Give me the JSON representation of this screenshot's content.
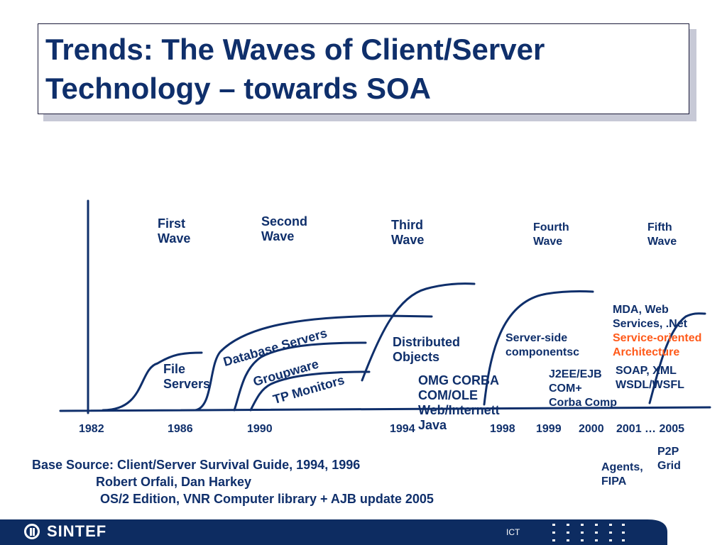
{
  "title": {
    "line1": "Trends: The Waves of Client/Server",
    "line2": "Technology – towards SOA"
  },
  "waves": {
    "first": [
      "First",
      "Wave"
    ],
    "second": [
      "Second",
      "Wave"
    ],
    "third": [
      "Third",
      "Wave"
    ],
    "fourth": [
      "Fourth",
      "Wave"
    ],
    "fifth": [
      "Fifth",
      "Wave"
    ]
  },
  "technologies": {
    "file_servers": [
      "File",
      "Servers"
    ],
    "database_servers": "Database Servers",
    "groupware": "Groupware",
    "tp_monitors": "TP Monitors",
    "distributed_objects": [
      "Distributed",
      "Objects"
    ],
    "third_wave_items": [
      "OMG CORBA",
      "COM/OLE",
      "Web/Internett",
      "Java"
    ],
    "server_side": [
      "Server-side",
      "componentsc"
    ],
    "fourth_wave_items": [
      "J2EE/EJB",
      "COM+",
      "Corba Comp"
    ],
    "fifth_wave_items": [
      "MDA, Web",
      "Services, .Net"
    ],
    "soa": [
      "Service-oriented",
      "Architecture"
    ],
    "fifth_wave_items2": [
      "SOAP, XML",
      "WSDL/WSFL"
    ],
    "agents": [
      "Agents,",
      "FIPA"
    ],
    "p2p": [
      "P2P",
      "Grid"
    ]
  },
  "years": [
    "1982",
    "1986",
    "1990",
    "1994",
    "1998",
    "1999",
    "2000",
    "2001 … 2005"
  ],
  "source": {
    "line1": "Base Source: Client/Server Survival Guide, 1994, 1996",
    "line2": "Robert Orfali, Dan Harkey",
    "line3": "OS/2 Edition, VNR Computer library + AJB update 2005"
  },
  "footer": {
    "logo": "SINTEF",
    "label": "ICT"
  },
  "colors": {
    "primary": "#0f2f6b",
    "highlight": "#ff5a1a",
    "footer": "#0d2c61"
  }
}
